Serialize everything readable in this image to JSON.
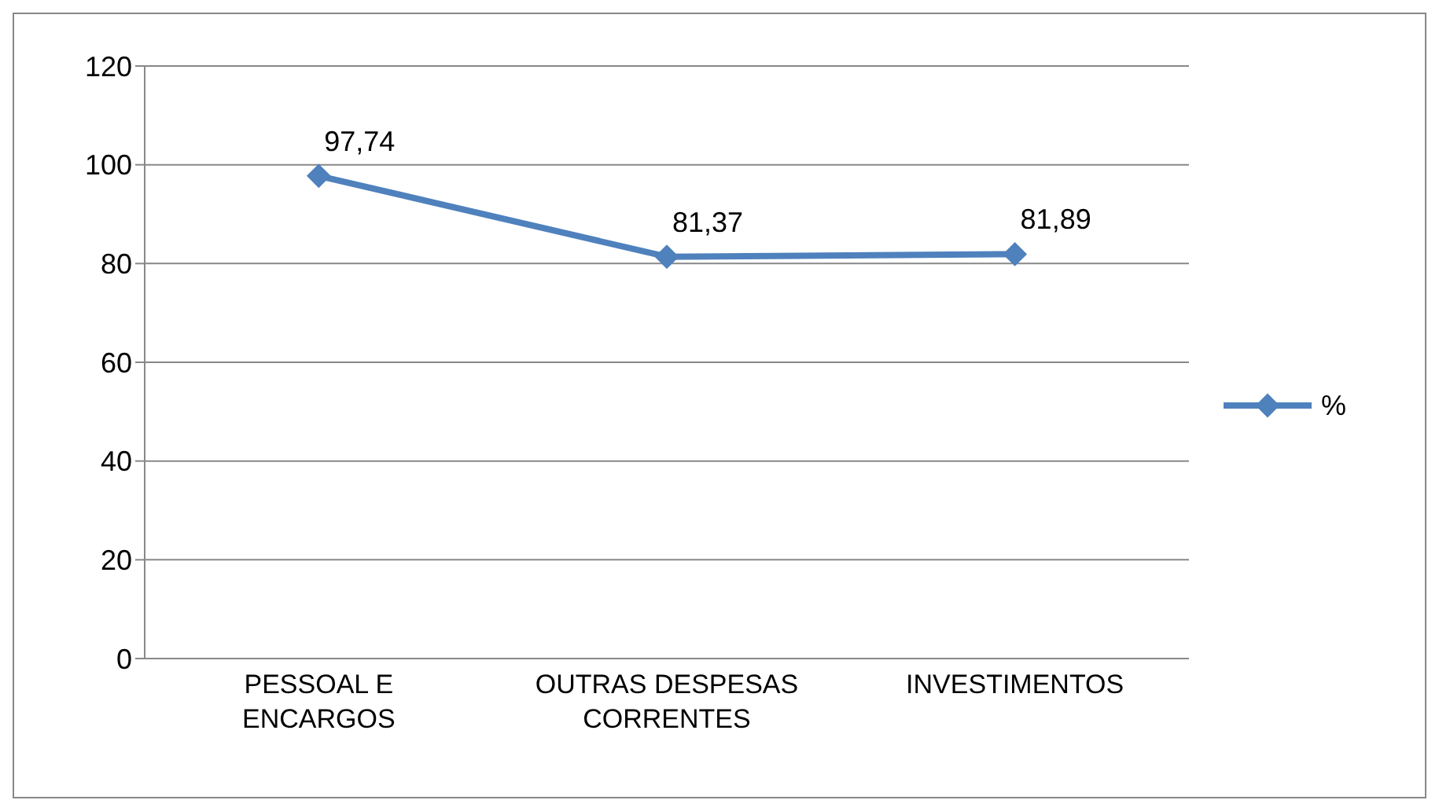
{
  "chart_data": {
    "type": "line",
    "categories": [
      "PESSOAL E ENCARGOS",
      "OUTRAS DESPESAS CORRENTES",
      "INVESTIMENTOS"
    ],
    "series": [
      {
        "name": "%",
        "color": "#4f81bd",
        "values": [
          97.74,
          81.37,
          81.89
        ],
        "value_labels": [
          "97,74",
          "81,37",
          "81,89"
        ]
      }
    ],
    "ylim": [
      0,
      120
    ],
    "yticks": [
      0,
      20,
      40,
      60,
      80,
      100,
      120
    ],
    "grid": "y",
    "legend": "right",
    "marker": "diamond",
    "line_style": "solid"
  }
}
